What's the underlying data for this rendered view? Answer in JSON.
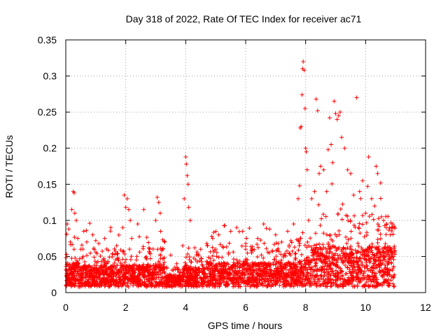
{
  "chart_data": {
    "type": "scatter",
    "title": "Day 318 of 2022, Rate Of TEC Index for receiver ac71",
    "xlabel": "GPS time / hours",
    "ylabel": "ROTI / TECUs",
    "xlim": [
      0,
      12
    ],
    "ylim": [
      0,
      0.35
    ],
    "xticks": [
      0,
      2,
      4,
      6,
      8,
      10,
      12
    ],
    "xtick_labels": [
      "0",
      "2",
      "4",
      "6",
      "8",
      "10",
      "12"
    ],
    "yticks": [
      0,
      0.05,
      0.1,
      0.15,
      0.2,
      0.25,
      0.3,
      0.35
    ],
    "ytick_labels": [
      "0",
      "0.05",
      "0.1",
      "0.15",
      "0.2",
      "0.25",
      "0.3",
      "0.35"
    ],
    "grid": true,
    "marker": "+",
    "color": "#ff0000",
    "series": [
      {
        "name": "ROTI",
        "points": [
          [
            0.05,
            0.095
          ],
          [
            0.1,
            0.088
          ],
          [
            0.15,
            0.07
          ],
          [
            0.2,
            0.115
          ],
          [
            0.25,
            0.14
          ],
          [
            0.28,
            0.138
          ],
          [
            0.3,
            0.11
          ],
          [
            0.35,
            0.1
          ],
          [
            0.4,
            0.075
          ],
          [
            0.5,
            0.06
          ],
          [
            0.6,
            0.085
          ],
          [
            0.7,
            0.07
          ],
          [
            0.8,
            0.096
          ],
          [
            0.9,
            0.08
          ],
          [
            1.0,
            0.072
          ],
          [
            1.1,
            0.068
          ],
          [
            1.3,
            0.075
          ],
          [
            1.5,
            0.09
          ],
          [
            1.7,
            0.065
          ],
          [
            1.9,
            0.09
          ],
          [
            1.95,
            0.135
          ],
          [
            2.0,
            0.118
          ],
          [
            2.05,
            0.13
          ],
          [
            2.1,
            0.115
          ],
          [
            2.15,
            0.1
          ],
          [
            2.2,
            0.075
          ],
          [
            2.4,
            0.095
          ],
          [
            2.6,
            0.115
          ],
          [
            2.8,
            0.06
          ],
          [
            3.0,
            0.1
          ],
          [
            3.05,
            0.132
          ],
          [
            3.1,
            0.125
          ],
          [
            3.15,
            0.11
          ],
          [
            3.3,
            0.07
          ],
          [
            3.5,
            0.052
          ],
          [
            3.7,
            0.04
          ],
          [
            3.9,
            0.065
          ],
          [
            3.95,
            0.13
          ],
          [
            4.0,
            0.188
          ],
          [
            4.02,
            0.178
          ],
          [
            4.05,
            0.162
          ],
          [
            4.08,
            0.15
          ],
          [
            4.1,
            0.118
          ],
          [
            4.15,
            0.1
          ],
          [
            4.3,
            0.062
          ],
          [
            4.5,
            0.06
          ],
          [
            4.7,
            0.068
          ],
          [
            4.9,
            0.075
          ],
          [
            5.1,
            0.08
          ],
          [
            5.3,
            0.093
          ],
          [
            5.5,
            0.085
          ],
          [
            5.7,
            0.09
          ],
          [
            5.9,
            0.085
          ],
          [
            6.0,
            0.06
          ],
          [
            6.2,
            0.055
          ],
          [
            6.4,
            0.075
          ],
          [
            6.6,
            0.095
          ],
          [
            6.8,
            0.088
          ],
          [
            7.0,
            0.08
          ],
          [
            7.2,
            0.07
          ],
          [
            7.4,
            0.085
          ],
          [
            7.6,
            0.095
          ],
          [
            7.75,
            0.13
          ],
          [
            7.8,
            0.148
          ],
          [
            7.82,
            0.228
          ],
          [
            7.85,
            0.23
          ],
          [
            7.88,
            0.274
          ],
          [
            7.9,
            0.31
          ],
          [
            7.92,
            0.32
          ],
          [
            7.95,
            0.308
          ],
          [
            7.98,
            0.255
          ],
          [
            8.0,
            0.2
          ],
          [
            8.02,
            0.195
          ],
          [
            8.05,
            0.17
          ],
          [
            8.1,
            0.1
          ],
          [
            8.2,
            0.13
          ],
          [
            8.3,
            0.14
          ],
          [
            8.35,
            0.268
          ],
          [
            8.4,
            0.252
          ],
          [
            8.45,
            0.165
          ],
          [
            8.5,
            0.175
          ],
          [
            8.6,
            0.17
          ],
          [
            8.7,
            0.14
          ],
          [
            8.75,
            0.198
          ],
          [
            8.8,
            0.242
          ],
          [
            8.85,
            0.205
          ],
          [
            8.9,
            0.18
          ],
          [
            8.95,
            0.265
          ],
          [
            9.0,
            0.248
          ],
          [
            9.05,
            0.24
          ],
          [
            9.1,
            0.245
          ],
          [
            9.15,
            0.25
          ],
          [
            9.2,
            0.215
          ],
          [
            9.3,
            0.2
          ],
          [
            9.4,
            0.17
          ],
          [
            9.5,
            0.165
          ],
          [
            9.6,
            0.135
          ],
          [
            9.7,
            0.27
          ],
          [
            9.8,
            0.14
          ],
          [
            9.9,
            0.155
          ],
          [
            10.0,
            0.11
          ],
          [
            10.1,
            0.188
          ],
          [
            10.2,
            0.13
          ],
          [
            10.3,
            0.12
          ],
          [
            10.35,
            0.175
          ],
          [
            10.4,
            0.165
          ],
          [
            10.5,
            0.152
          ],
          [
            10.6,
            0.1
          ],
          [
            10.7,
            0.095
          ],
          [
            10.8,
            0.09
          ],
          [
            10.9,
            0.095
          ],
          [
            10.95,
            0.092
          ]
        ]
      }
    ]
  }
}
